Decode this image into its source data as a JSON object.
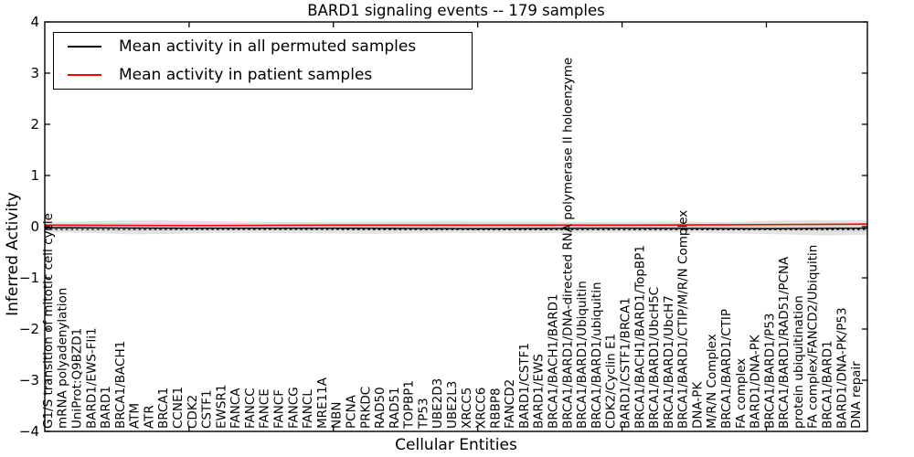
{
  "title": "BARD1 signaling events -- 179 samples",
  "legend": {
    "entries": [
      {
        "label": "Mean activity in all permuted samples",
        "color": "#000000"
      },
      {
        "label": "Mean activity in patient samples",
        "color": "#ff0000"
      }
    ]
  },
  "chart_data": {
    "type": "line",
    "title": "BARD1 signaling events -- 179 samples",
    "xlabel": "Cellular Entities",
    "ylabel": "Inferred Activity",
    "ylim": [
      -4,
      4
    ],
    "yticks": [
      4,
      3,
      2,
      1,
      0,
      -1,
      -2,
      -3,
      -4
    ],
    "xlim": [
      0,
      57
    ],
    "xticks": [
      10,
      20,
      30,
      40,
      50
    ],
    "grid": false,
    "legend_position": "upper left",
    "categories": [
      "G1/S transition of mitotic cell cycle",
      "mRNA polyadenylation",
      "UniProt:Q9BZD1",
      "BARD1/EWS-Fli1",
      "BARD1",
      "BRCA1/BACH1",
      "ATM",
      "ATR",
      "BRCA1",
      "CCNE1",
      "CDK2",
      "CSTF1",
      "EWSR1",
      "FANCA",
      "FANCC",
      "FANCE",
      "FANCF",
      "FANCG",
      "FANCL",
      "MRE11A",
      "NBN",
      "PCNA",
      "PRKDC",
      "RAD50",
      "RAD51",
      "TOPBP1",
      "TP53",
      "UBE2D3",
      "UBE2L3",
      "XRCC5",
      "XRCC6",
      "RBBP8",
      "FANCD2",
      "BARD1/CSTF1",
      "BARD1/EWS",
      "BRCA1/BACH1/BARD1",
      "BRCA1/BARD1/DNA-directed RNA polymerase II holoenzyme",
      "BRCA1/BARD1/Ubiquitin",
      "BRCA1/BARD1/ubiquitin",
      "CDK2/Cyclin E1",
      "BARD1/CSTF1/BRCA1",
      "BRCA1/BACH1/BARD1/TopBP1",
      "BRCA1/BARD1/UbcH5C",
      "BRCA1/BARD1/UbcH7",
      "BRCA1/BARD1/CTIP/M/R/N Complex",
      "DNA-PK",
      "M/R/N Complex",
      "BRCA1/BARD1/CTIP",
      "FA complex",
      "BARD1/DNA-PK",
      "BRCA1/BARD1/P53",
      "BRCA1/BARD1/RAD51/PCNA",
      "protein ubiquitination",
      "FA complex/FANCD2/Ubiquitin",
      "BRCA1/BARD1",
      "BARD1/DNA-PK/P53",
      "DNA repair"
    ],
    "bands": [
      {
        "name": "permuted-activity-spread-outer",
        "color": "#e3e3e3",
        "upper": [
          [
            0,
            0.09
          ],
          [
            3,
            0.1
          ],
          [
            6,
            0.13
          ],
          [
            9,
            0.12
          ],
          [
            13,
            0.1
          ],
          [
            18,
            0.09
          ],
          [
            23,
            0.1
          ],
          [
            28,
            0.11
          ],
          [
            33,
            0.1
          ],
          [
            38,
            0.09
          ],
          [
            43,
            0.1
          ],
          [
            47,
            0.09
          ],
          [
            51,
            0.12
          ],
          [
            54,
            0.13
          ],
          [
            57,
            0.12
          ]
        ],
        "lower": [
          [
            0,
            -0.11
          ],
          [
            3,
            -0.12
          ],
          [
            6,
            -0.15
          ],
          [
            9,
            -0.14
          ],
          [
            13,
            -0.12
          ],
          [
            18,
            -0.13
          ],
          [
            23,
            -0.14
          ],
          [
            28,
            -0.12
          ],
          [
            33,
            -0.13
          ],
          [
            38,
            -0.12
          ],
          [
            43,
            -0.11
          ],
          [
            47,
            -0.13
          ],
          [
            51,
            -0.15
          ],
          [
            54,
            -0.17
          ],
          [
            57,
            -0.16
          ]
        ]
      },
      {
        "name": "permuted-activity-spread-inner",
        "color": "#d5d5d5",
        "upper": [
          [
            0,
            0.05
          ],
          [
            6,
            0.07
          ],
          [
            13,
            0.05
          ],
          [
            23,
            0.06
          ],
          [
            33,
            0.06
          ],
          [
            43,
            0.05
          ],
          [
            51,
            0.07
          ],
          [
            57,
            0.07
          ]
        ],
        "lower": [
          [
            0,
            -0.07
          ],
          [
            6,
            -0.09
          ],
          [
            13,
            -0.07
          ],
          [
            23,
            -0.08
          ],
          [
            33,
            -0.08
          ],
          [
            43,
            -0.07
          ],
          [
            51,
            -0.09
          ],
          [
            57,
            -0.1
          ]
        ]
      }
    ],
    "series": [
      {
        "name": "Mean activity in all permuted samples",
        "color": "#000000",
        "style": "solid",
        "width": 1.4,
        "points": [
          [
            0,
            -0.02
          ],
          [
            10,
            -0.03
          ],
          [
            20,
            -0.03
          ],
          [
            30,
            -0.04
          ],
          [
            40,
            -0.03
          ],
          [
            50,
            -0.04
          ],
          [
            57,
            -0.03
          ]
        ]
      },
      {
        "name": "permuted-mean-dashed-overlay",
        "color": "#000000",
        "style": "dashed",
        "width": 1.2,
        "points": [
          [
            0,
            -0.055
          ],
          [
            20,
            -0.055
          ],
          [
            40,
            -0.06
          ],
          [
            57,
            -0.055
          ]
        ]
      },
      {
        "name": "Mean activity in patient samples",
        "color": "#ff0000",
        "style": "solid",
        "width": 1.6,
        "points": [
          [
            0,
            0.03
          ],
          [
            10,
            0.02
          ],
          [
            20,
            0.03
          ],
          [
            30,
            0.03
          ],
          [
            40,
            0.03
          ],
          [
            50,
            0.04
          ],
          [
            57,
            0.05
          ]
        ]
      }
    ]
  }
}
